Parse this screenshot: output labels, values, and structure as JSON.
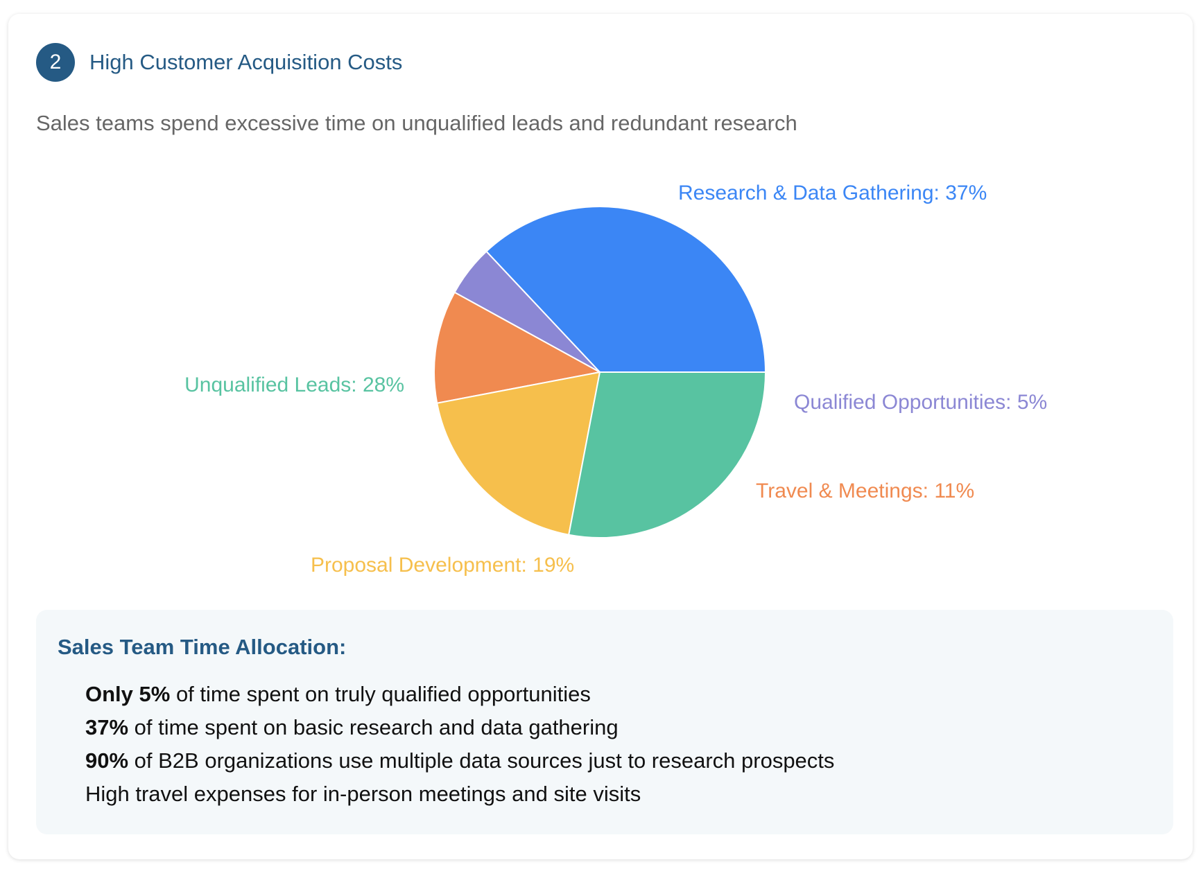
{
  "header": {
    "number": "2",
    "title": "High Customer Acquisition Costs",
    "subtitle": "Sales teams spend excessive time on unqualified leads and redundant research"
  },
  "chart_data": {
    "type": "pie",
    "title": "",
    "slices": [
      {
        "label": "Research & Data Gathering",
        "value": 37,
        "color": "#3b86f5",
        "display": "Research & Data Gathering: 37%"
      },
      {
        "label": "Qualified Opportunities",
        "value": 5,
        "color": "#8b87d4",
        "display": "Qualified Opportunities: 5%"
      },
      {
        "label": "Travel & Meetings",
        "value": 11,
        "color": "#f08a50",
        "display": "Travel & Meetings: 11%"
      },
      {
        "label": "Proposal Development",
        "value": 19,
        "color": "#f6bf4c",
        "display": "Proposal Development: 19%"
      },
      {
        "label": "Unqualified Leads",
        "value": 28,
        "color": "#58c3a1",
        "display": "Unqualified Leads: 28%"
      }
    ]
  },
  "stats": {
    "title": "Sales Team Time Allocation:",
    "items": [
      {
        "bold": "Only 5%",
        "text": " of time spent on truly qualified opportunities"
      },
      {
        "bold": "37%",
        "text": " of time spent on basic research and data gathering"
      },
      {
        "bold": "90%",
        "text": " of B2B organizations use multiple data sources just to research prospects"
      },
      {
        "bold": "",
        "text": "High travel expenses for in-person meetings and site visits"
      }
    ]
  }
}
